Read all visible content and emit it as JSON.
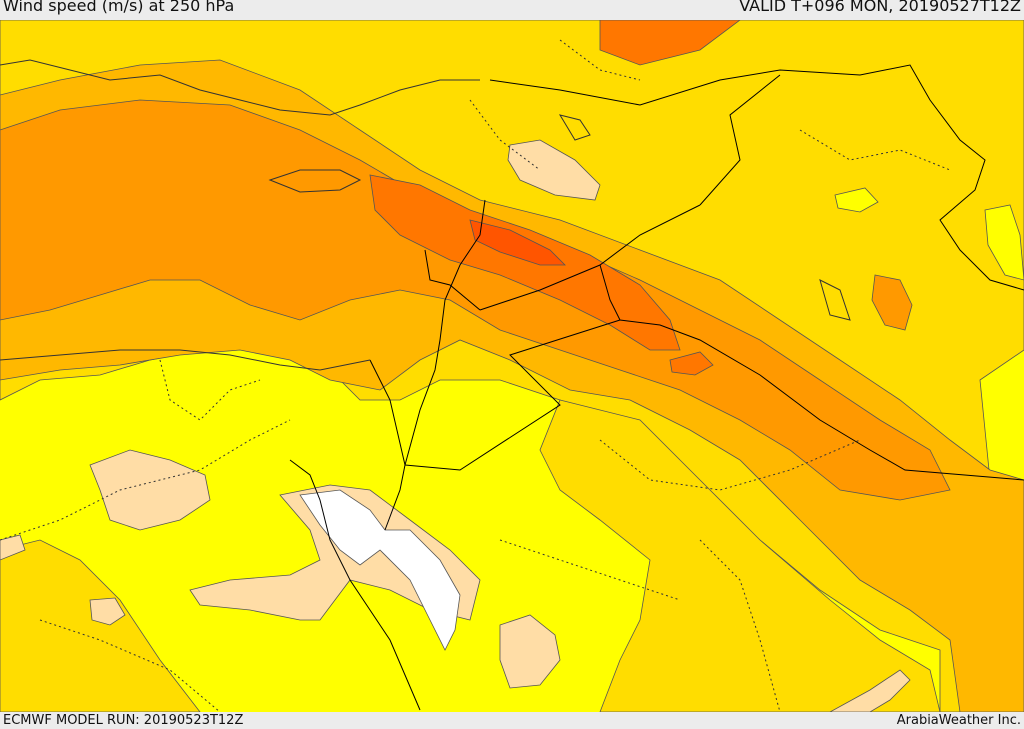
{
  "header": {
    "title": "Wind speed (m/s) at 250 hPa",
    "valid": "VALID T+096 MON, 20190527T12Z"
  },
  "footer": {
    "model_run": "ECMWF MODEL RUN: 20190523T12Z",
    "credit": "ArabiaWeather Inc."
  },
  "map": {
    "variable": "wind speed",
    "level": "250 hPa",
    "colors": {
      "lowest": "#ffffff",
      "low": "#ffdda6",
      "base": "#ffff00",
      "mid": "#ffdd00",
      "upper_mid": "#ffb800",
      "high": "#ff9900",
      "highest": "#ff7700",
      "peak": "#ff5500",
      "contour_line": "#555555",
      "border_line": "#000000"
    }
  }
}
